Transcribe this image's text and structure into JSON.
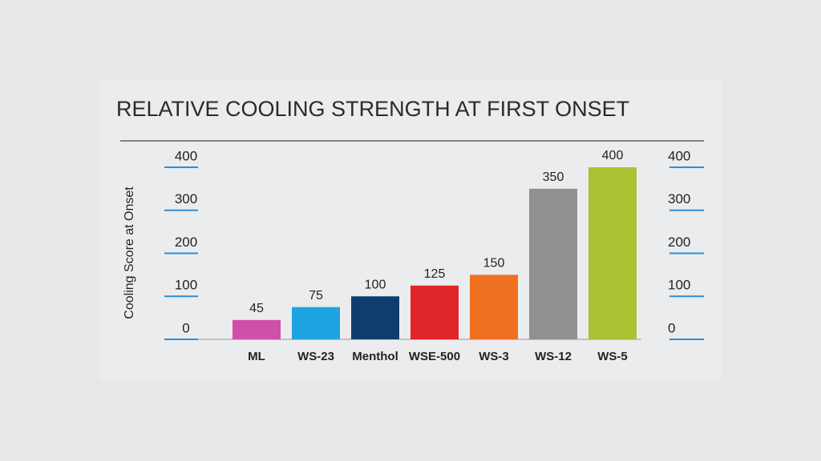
{
  "chart_data": {
    "type": "bar",
    "title": "RELATIVE COOLING STRENGTH AT FIRST ONSET",
    "y_label": "Cooling Score at Onset",
    "categories": [
      "ML",
      "WS-23",
      "Menthol",
      "WSE-500",
      "WS-3",
      "WS-12",
      "WS-5"
    ],
    "values": [
      45,
      75,
      100,
      125,
      150,
      350,
      400
    ],
    "colors": [
      "#d04fa8",
      "#1ea4e0",
      "#0f3e6c",
      "#e0252b",
      "#ef7021",
      "#8f9092",
      "#a9c233"
    ],
    "ylim": [
      0,
      400
    ],
    "yticks": [
      0,
      100,
      200,
      300,
      400
    ],
    "y2lim": [
      0,
      400
    ],
    "y2ticks": [
      0,
      100,
      200,
      300,
      400
    ],
    "tick_color": "#2b8fd6"
  }
}
